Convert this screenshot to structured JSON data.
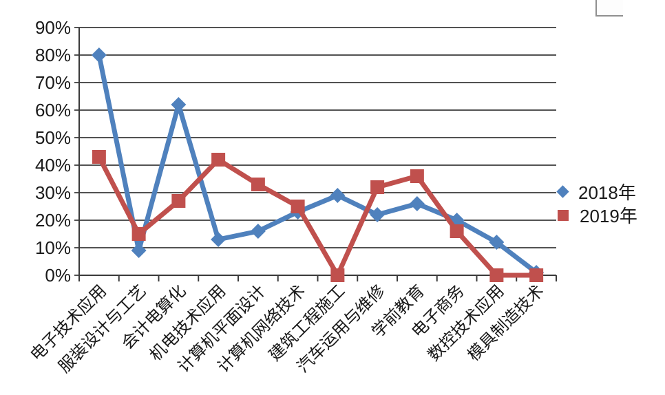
{
  "chart_data": {
    "type": "line",
    "title": "",
    "xlabel": "",
    "ylabel": "",
    "categories": [
      "电子技术应用",
      "服装设计与工艺",
      "会计电算化",
      "机电技术应用",
      "计算机平面设计",
      "计算机网络技术",
      "建筑工程施工",
      "汽车运用与维修",
      "学前教育",
      "电子商务",
      "数控技术应用",
      "模具制造技术"
    ],
    "series": [
      {
        "name": "2018年",
        "marker": "diamond",
        "color": "#4F81BD",
        "values": [
          80,
          9,
          62,
          13,
          16,
          23,
          29,
          22,
          26,
          20,
          12,
          1
        ]
      },
      {
        "name": "2019年",
        "marker": "square",
        "color": "#C0504D",
        "values": [
          43,
          15,
          27,
          42,
          33,
          25,
          0,
          32,
          36,
          16,
          0,
          0
        ]
      }
    ],
    "ylim": [
      0,
      90
    ],
    "ytick_step": 10,
    "ytick_suffix": "%",
    "grid": "horizontal",
    "legend_position": "right",
    "colors": {
      "axis": "#3a3a3a",
      "text": "#1a1a1a",
      "background": "#ffffff"
    }
  }
}
